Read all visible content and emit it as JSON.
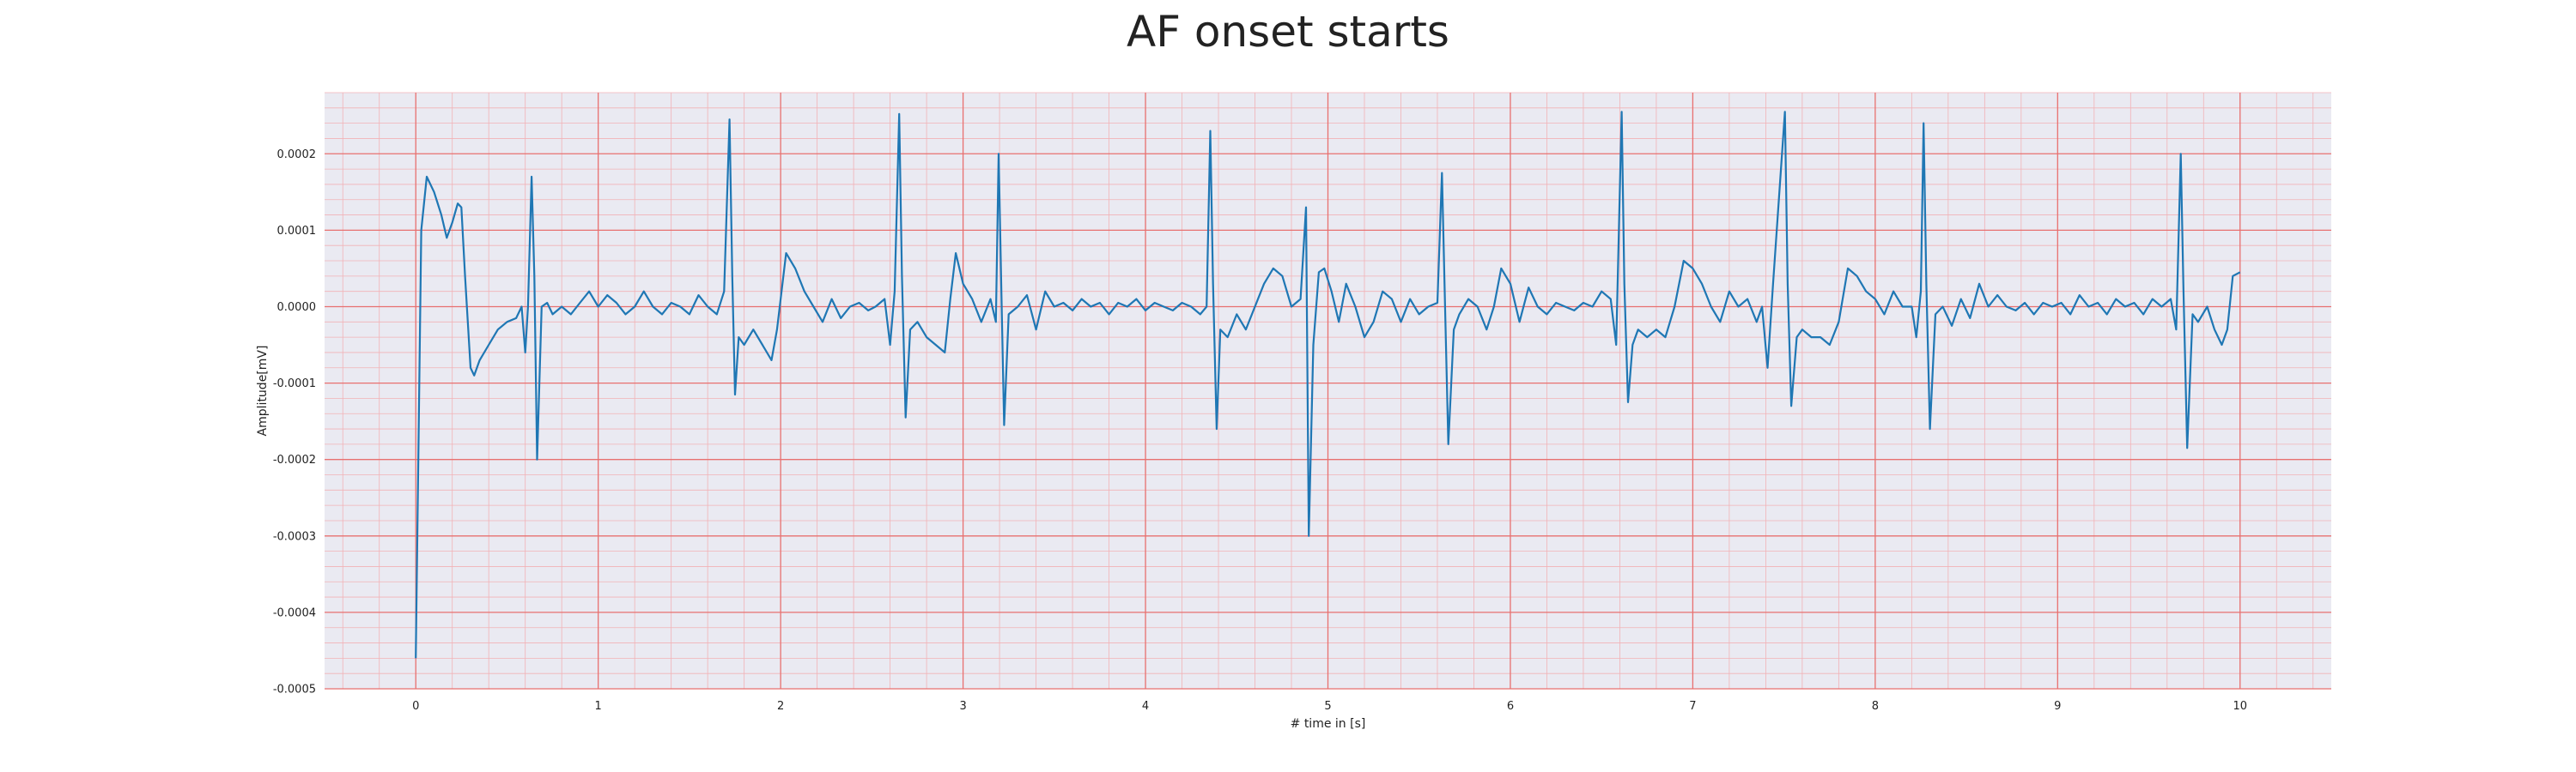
{
  "chart_data": {
    "type": "line",
    "title": "AF onset starts",
    "xlabel": "# time in [s]",
    "ylabel": "Amplitude[mV]",
    "xlim": [
      -0.5,
      10.5
    ],
    "ylim": [
      -0.0005,
      0.00028
    ],
    "xticks": [
      0,
      1,
      2,
      3,
      4,
      5,
      6,
      7,
      8,
      9,
      10
    ],
    "xtick_labels": [
      "0",
      "1",
      "2",
      "3",
      "4",
      "5",
      "6",
      "7",
      "8",
      "9",
      "10"
    ],
    "yticks": [
      -0.0005,
      -0.0004,
      -0.0003,
      -0.0002,
      -0.0001,
      0,
      0.0001,
      0.0002
    ],
    "ytick_labels": [
      "-0.0005",
      "-0.0004",
      "-0.0003",
      "-0.0002",
      "-0.0001",
      "0.0000",
      "0.0001",
      "0.0002"
    ],
    "grid": true,
    "minor_grid": true,
    "colors": {
      "background": "#eaeaf2",
      "major_grid": "#e8706f",
      "minor_grid": "#f2b2b6",
      "line": "#1f77b4"
    },
    "series": [
      {
        "values": [
          [
            0.0,
            -0.00046
          ],
          [
            0.03,
            0.0001
          ],
          [
            0.06,
            0.00017
          ],
          [
            0.1,
            0.00015
          ],
          [
            0.14,
            0.00012
          ],
          [
            0.17,
            9e-05
          ],
          [
            0.2,
            0.00011
          ],
          [
            0.23,
            0.000135
          ],
          [
            0.25,
            0.00013
          ],
          [
            0.27,
            4e-05
          ],
          [
            0.3,
            -8e-05
          ],
          [
            0.32,
            -9e-05
          ],
          [
            0.35,
            -7e-05
          ],
          [
            0.4,
            -5e-05
          ],
          [
            0.45,
            -3e-05
          ],
          [
            0.5,
            -2e-05
          ],
          [
            0.55,
            -1.5e-05
          ],
          [
            0.58,
            0.0
          ],
          [
            0.6,
            -6e-05
          ],
          [
            0.615,
            0.0
          ],
          [
            0.635,
            0.00017
          ],
          [
            0.65,
            4e-05
          ],
          [
            0.665,
            -0.0002
          ],
          [
            0.69,
            0.0
          ],
          [
            0.72,
            5e-06
          ],
          [
            0.75,
            -1e-05
          ],
          [
            0.8,
            0.0
          ],
          [
            0.85,
            -1e-05
          ],
          [
            0.9,
            5e-06
          ],
          [
            0.95,
            2e-05
          ],
          [
            1.0,
            0.0
          ],
          [
            1.05,
            1.5e-05
          ],
          [
            1.1,
            5e-06
          ],
          [
            1.15,
            -1e-05
          ],
          [
            1.2,
            0.0
          ],
          [
            1.25,
            2e-05
          ],
          [
            1.3,
            0.0
          ],
          [
            1.35,
            -1e-05
          ],
          [
            1.4,
            5e-06
          ],
          [
            1.45,
            0.0
          ],
          [
            1.5,
            -1e-05
          ],
          [
            1.55,
            1.5e-05
          ],
          [
            1.6,
            0.0
          ],
          [
            1.65,
            -1e-05
          ],
          [
            1.69,
            2e-05
          ],
          [
            1.72,
            0.000245
          ],
          [
            1.735,
            4e-05
          ],
          [
            1.75,
            -0.000115
          ],
          [
            1.77,
            -4e-05
          ],
          [
            1.8,
            -5e-05
          ],
          [
            1.85,
            -3e-05
          ],
          [
            1.9,
            -5e-05
          ],
          [
            1.95,
            -7e-05
          ],
          [
            1.98,
            -3e-05
          ],
          [
            2.03,
            7e-05
          ],
          [
            2.08,
            5e-05
          ],
          [
            2.13,
            2e-05
          ],
          [
            2.18,
            0.0
          ],
          [
            2.23,
            -2e-05
          ],
          [
            2.28,
            1e-05
          ],
          [
            2.33,
            -1.5e-05
          ],
          [
            2.38,
            0.0
          ],
          [
            2.43,
            5e-06
          ],
          [
            2.48,
            -5e-06
          ],
          [
            2.52,
            0.0
          ],
          [
            2.57,
            1e-05
          ],
          [
            2.6,
            -5e-05
          ],
          [
            2.625,
            2e-05
          ],
          [
            2.65,
            0.000252
          ],
          [
            2.665,
            4e-05
          ],
          [
            2.685,
            -0.000145
          ],
          [
            2.71,
            -3e-05
          ],
          [
            2.75,
            -2e-05
          ],
          [
            2.8,
            -4e-05
          ],
          [
            2.85,
            -5e-05
          ],
          [
            2.9,
            -6e-05
          ],
          [
            2.93,
            1e-05
          ],
          [
            2.96,
            7e-05
          ],
          [
            3.0,
            3e-05
          ],
          [
            3.05,
            1e-05
          ],
          [
            3.1,
            -2e-05
          ],
          [
            3.15,
            1e-05
          ],
          [
            3.18,
            -2e-05
          ],
          [
            3.195,
            0.0002
          ],
          [
            3.21,
            2e-05
          ],
          [
            3.225,
            -0.000155
          ],
          [
            3.25,
            -1e-05
          ],
          [
            3.3,
            0.0
          ],
          [
            3.35,
            1.5e-05
          ],
          [
            3.4,
            -3e-05
          ],
          [
            3.45,
            2e-05
          ],
          [
            3.5,
            0.0
          ],
          [
            3.55,
            5e-06
          ],
          [
            3.6,
            -5e-06
          ],
          [
            3.65,
            1e-05
          ],
          [
            3.7,
            0.0
          ],
          [
            3.75,
            5e-06
          ],
          [
            3.8,
            -1e-05
          ],
          [
            3.85,
            5e-06
          ],
          [
            3.9,
            0.0
          ],
          [
            3.95,
            1e-05
          ],
          [
            4.0,
            -5e-06
          ],
          [
            4.05,
            5e-06
          ],
          [
            4.1,
            0.0
          ],
          [
            4.15,
            -5e-06
          ],
          [
            4.2,
            5e-06
          ],
          [
            4.25,
            0.0
          ],
          [
            4.3,
            -1e-05
          ],
          [
            4.335,
            0.0
          ],
          [
            4.355,
            0.00023
          ],
          [
            4.37,
            3e-05
          ],
          [
            4.39,
            -0.00016
          ],
          [
            4.41,
            -3e-05
          ],
          [
            4.45,
            -4e-05
          ],
          [
            4.5,
            -1e-05
          ],
          [
            4.55,
            -3e-05
          ],
          [
            4.6,
            0.0
          ],
          [
            4.65,
            3e-05
          ],
          [
            4.7,
            5e-05
          ],
          [
            4.75,
            4e-05
          ],
          [
            4.8,
            0.0
          ],
          [
            4.85,
            1e-05
          ],
          [
            4.88,
            0.00013
          ],
          [
            4.895,
            -0.0003
          ],
          [
            4.92,
            -5e-05
          ],
          [
            4.95,
            4.5e-05
          ],
          [
            4.98,
            5e-05
          ],
          [
            5.02,
            2e-05
          ],
          [
            5.06,
            -2e-05
          ],
          [
            5.1,
            3e-05
          ],
          [
            5.15,
            0.0
          ],
          [
            5.2,
            -4e-05
          ],
          [
            5.25,
            -2e-05
          ],
          [
            5.3,
            2e-05
          ],
          [
            5.35,
            1e-05
          ],
          [
            5.4,
            -2e-05
          ],
          [
            5.45,
            1e-05
          ],
          [
            5.5,
            -1e-05
          ],
          [
            5.55,
            0.0
          ],
          [
            5.6,
            5e-06
          ],
          [
            5.625,
            0.000175
          ],
          [
            5.64,
            2e-05
          ],
          [
            5.66,
            -0.00018
          ],
          [
            5.69,
            -3e-05
          ],
          [
            5.72,
            -1e-05
          ],
          [
            5.77,
            1e-05
          ],
          [
            5.82,
            0.0
          ],
          [
            5.87,
            -3e-05
          ],
          [
            5.91,
            0.0
          ],
          [
            5.95,
            5e-05
          ],
          [
            6.0,
            3e-05
          ],
          [
            6.05,
            -2e-05
          ],
          [
            6.1,
            2.5e-05
          ],
          [
            6.15,
            0.0
          ],
          [
            6.2,
            -1e-05
          ],
          [
            6.25,
            5e-06
          ],
          [
            6.3,
            0.0
          ],
          [
            6.35,
            -5e-06
          ],
          [
            6.4,
            5e-06
          ],
          [
            6.45,
            0.0
          ],
          [
            6.5,
            2e-05
          ],
          [
            6.55,
            1e-05
          ],
          [
            6.58,
            -5e-05
          ],
          [
            6.61,
            0.000255
          ],
          [
            6.625,
            3e-05
          ],
          [
            6.645,
            -0.000125
          ],
          [
            6.67,
            -5e-05
          ],
          [
            6.7,
            -3e-05
          ],
          [
            6.75,
            -4e-05
          ],
          [
            6.8,
            -3e-05
          ],
          [
            6.85,
            -4e-05
          ],
          [
            6.9,
            0.0
          ],
          [
            6.95,
            6e-05
          ],
          [
            7.0,
            5e-05
          ],
          [
            7.05,
            3e-05
          ],
          [
            7.1,
            0.0
          ],
          [
            7.15,
            -2e-05
          ],
          [
            7.2,
            2e-05
          ],
          [
            7.25,
            0.0
          ],
          [
            7.3,
            1e-05
          ],
          [
            7.35,
            -2e-05
          ],
          [
            7.38,
            0.0
          ],
          [
            7.41,
            -8e-05
          ],
          [
            7.44,
            3e-05
          ],
          [
            7.505,
            0.000255
          ],
          [
            7.52,
            3e-05
          ],
          [
            7.54,
            -0.00013
          ],
          [
            7.57,
            -4e-05
          ],
          [
            7.6,
            -3e-05
          ],
          [
            7.65,
            -4e-05
          ],
          [
            7.7,
            -4e-05
          ],
          [
            7.75,
            -5e-05
          ],
          [
            7.8,
            -2e-05
          ],
          [
            7.85,
            5e-05
          ],
          [
            7.9,
            4e-05
          ],
          [
            7.95,
            2e-05
          ],
          [
            8.0,
            1e-05
          ],
          [
            8.05,
            -1e-05
          ],
          [
            8.1,
            2e-05
          ],
          [
            8.15,
            0.0
          ],
          [
            8.2,
            0.0
          ],
          [
            8.225,
            -4e-05
          ],
          [
            8.25,
            2e-05
          ],
          [
            8.265,
            0.00024
          ],
          [
            8.28,
            3e-05
          ],
          [
            8.3,
            -0.00016
          ],
          [
            8.33,
            -1e-05
          ],
          [
            8.37,
            0.0
          ],
          [
            8.42,
            -2.5e-05
          ],
          [
            8.47,
            1e-05
          ],
          [
            8.52,
            -1.5e-05
          ],
          [
            8.57,
            3e-05
          ],
          [
            8.62,
            0.0
          ],
          [
            8.67,
            1.5e-05
          ],
          [
            8.72,
            0.0
          ],
          [
            8.77,
            -5e-06
          ],
          [
            8.82,
            5e-06
          ],
          [
            8.87,
            -1e-05
          ],
          [
            8.92,
            5e-06
          ],
          [
            8.97,
            0.0
          ],
          [
            9.02,
            5e-06
          ],
          [
            9.07,
            -1e-05
          ],
          [
            9.12,
            1.5e-05
          ],
          [
            9.17,
            0.0
          ],
          [
            9.22,
            5e-06
          ],
          [
            9.27,
            -1e-05
          ],
          [
            9.32,
            1e-05
          ],
          [
            9.37,
            0.0
          ],
          [
            9.42,
            5e-06
          ],
          [
            9.47,
            -1e-05
          ],
          [
            9.52,
            1e-05
          ],
          [
            9.57,
            0.0
          ],
          [
            9.62,
            1e-05
          ],
          [
            9.65,
            -3e-05
          ],
          [
            9.675,
            0.0002
          ],
          [
            9.69,
            2e-05
          ],
          [
            9.71,
            -0.000185
          ],
          [
            9.74,
            -1e-05
          ],
          [
            9.77,
            -2e-05
          ],
          [
            9.82,
            0.0
          ],
          [
            9.86,
            -3e-05
          ],
          [
            9.9,
            -5e-05
          ],
          [
            9.93,
            -3e-05
          ],
          [
            9.96,
            4e-05
          ],
          [
            10.0,
            4.5e-05
          ]
        ]
      }
    ]
  }
}
